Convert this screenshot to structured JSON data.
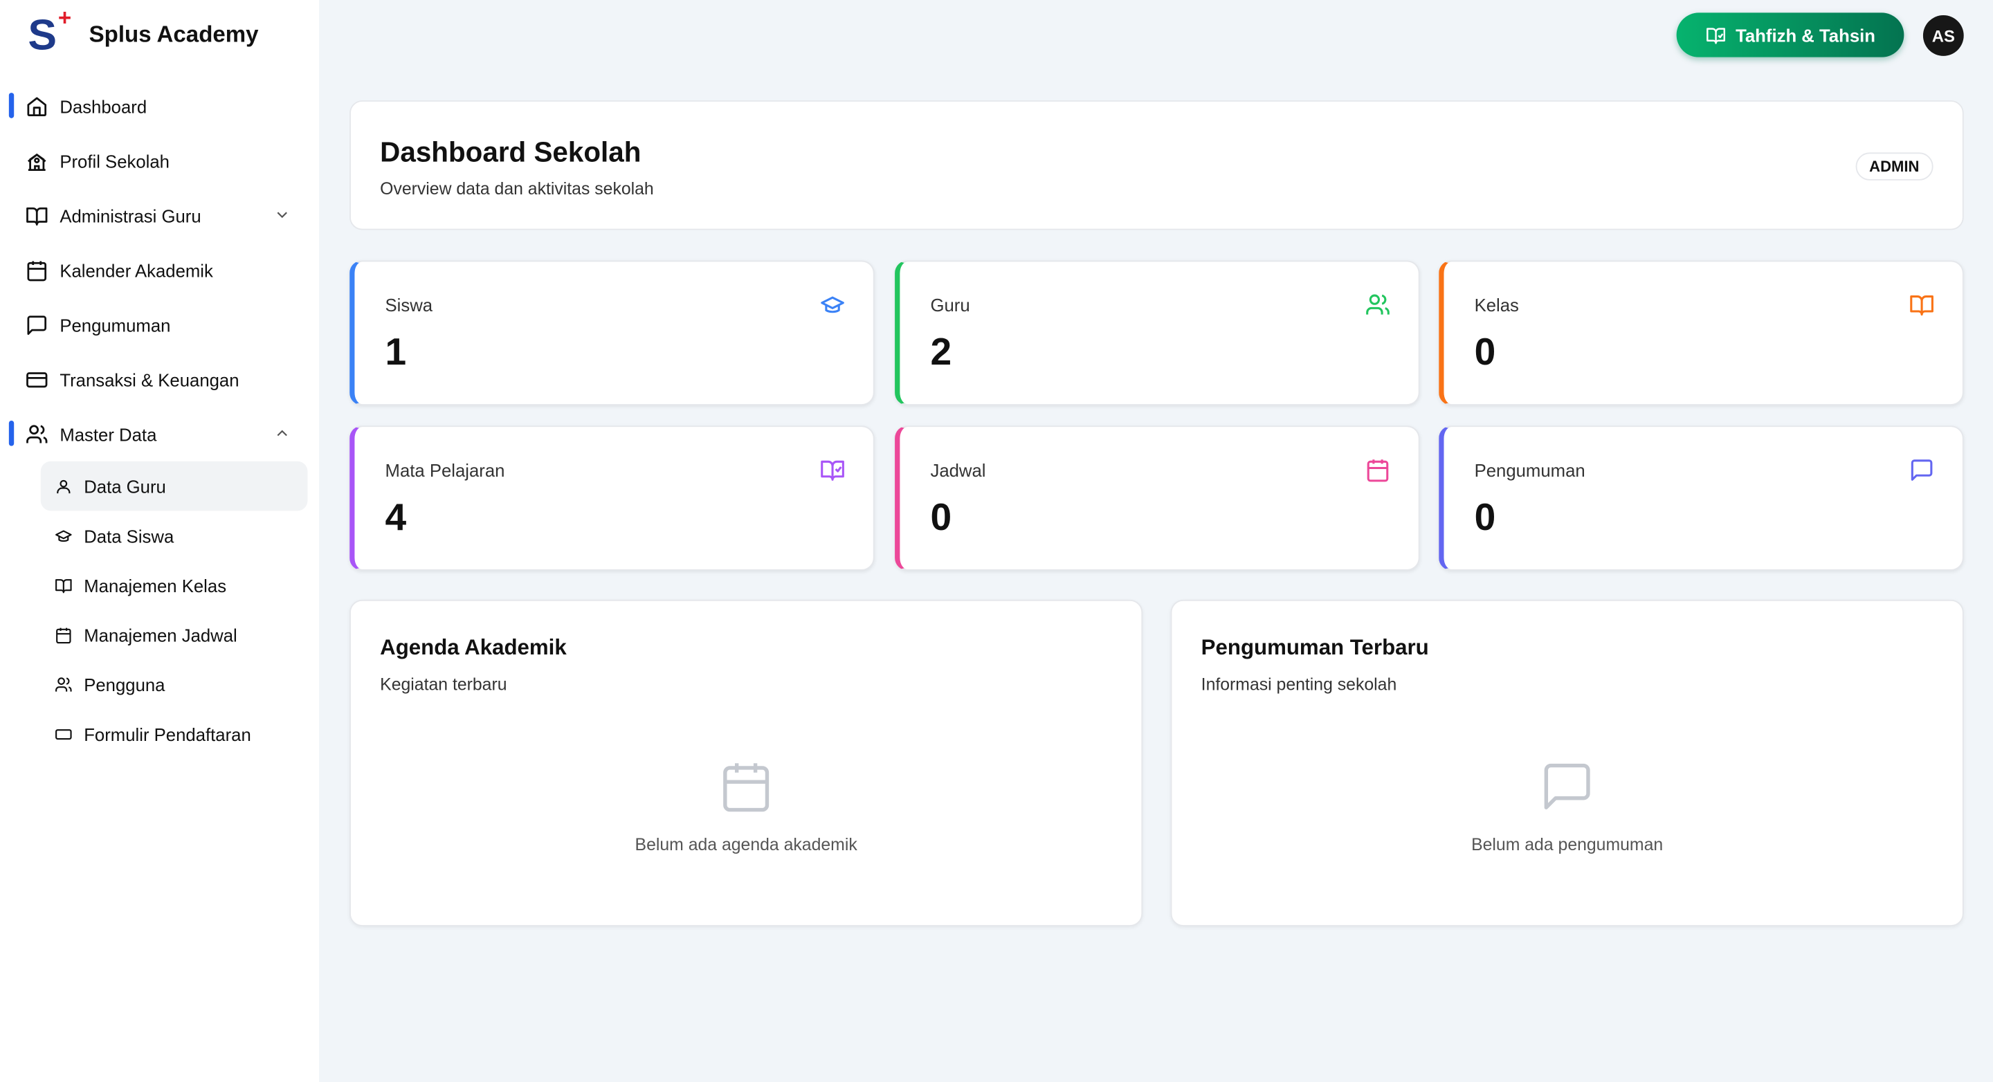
{
  "brand": {
    "name": "Splus Academy",
    "logo_letter": "S",
    "logo_plus": "+"
  },
  "sidebar": {
    "items": [
      {
        "label": "Dashboard",
        "icon": "home-icon",
        "active": true
      },
      {
        "label": "Profil Sekolah",
        "icon": "school-icon"
      },
      {
        "label": "Administrasi Guru",
        "icon": "book-open-icon",
        "expandable": true,
        "expanded": false
      },
      {
        "label": "Kalender Akademik",
        "icon": "calendar-icon"
      },
      {
        "label": "Pengumuman",
        "icon": "message-square-icon"
      },
      {
        "label": "Transaksi & Keuangan",
        "icon": "credit-card-icon"
      },
      {
        "label": "Master Data",
        "icon": "users-icon",
        "expandable": true,
        "expanded": true,
        "active": true
      }
    ],
    "master_data_items": [
      {
        "label": "Data Guru",
        "icon": "user-icon",
        "selected": true
      },
      {
        "label": "Data Siswa",
        "icon": "graduation-cap-icon"
      },
      {
        "label": "Manajemen Kelas",
        "icon": "book-open-icon"
      },
      {
        "label": "Manajemen Jadwal",
        "icon": "calendar-icon"
      },
      {
        "label": "Pengguna",
        "icon": "users-icon"
      },
      {
        "label": "Formulir Pendaftaran",
        "icon": "form-icon"
      }
    ]
  },
  "topbar": {
    "tahfizh_label": "Tahfizh & Tahsin",
    "avatar_initials": "AS"
  },
  "header": {
    "title": "Dashboard Sekolah",
    "subtitle": "Overview data dan aktivitas sekolah",
    "role_badge": "ADMIN"
  },
  "stats": [
    {
      "label": "Siswa",
      "value": "1",
      "color": "#3b82f6",
      "icon": "graduation-cap-icon"
    },
    {
      "label": "Guru",
      "value": "2",
      "color": "#22c55e",
      "icon": "users-icon"
    },
    {
      "label": "Kelas",
      "value": "0",
      "color": "#f97316",
      "icon": "book-open-icon"
    },
    {
      "label": "Mata Pelajaran",
      "value": "4",
      "color": "#a855f7",
      "icon": "book-check-icon"
    },
    {
      "label": "Jadwal",
      "value": "0",
      "color": "#ec4899",
      "icon": "calendar-icon"
    },
    {
      "label": "Pengumuman",
      "value": "0",
      "color": "#6366f1",
      "icon": "message-square-icon"
    }
  ],
  "panels": {
    "agenda": {
      "title": "Agenda Akademik",
      "subtitle": "Kegiatan terbaru",
      "empty": "Belum ada agenda akademik"
    },
    "pengumuman": {
      "title": "Pengumuman Terbaru",
      "subtitle": "Informasi penting sekolah",
      "empty": "Belum ada pengumuman"
    }
  },
  "colors": {
    "accent": "#2563eb",
    "tahfizh_start": "#06b36e",
    "tahfizh_end": "#047350",
    "background": "#f1f5f9"
  }
}
